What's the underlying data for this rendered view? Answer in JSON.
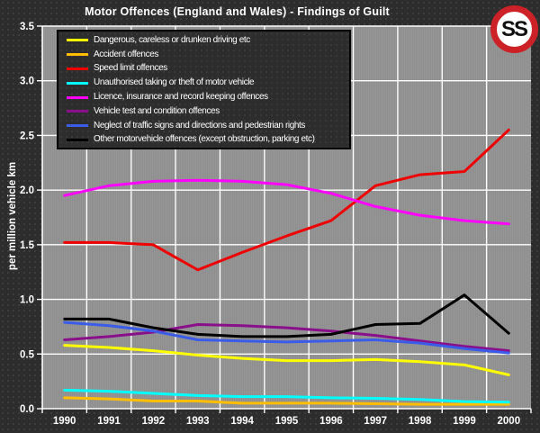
{
  "logo": {
    "text": "SS",
    "ring_color": "#cc2127"
  },
  "colors": {
    "background": "#2d2d2d",
    "background_dot": "#3e3e3e",
    "plot_fill": "#969696",
    "plot_stripe": "#8e8e8e",
    "grid": "#ffffff",
    "axis_text": "#ffffff",
    "legend_border": "#000000"
  },
  "chart_data": {
    "type": "line",
    "title": "Motor Offences (England and Wales) - Findings of Guilt",
    "x": [
      "1990",
      "1991",
      "1992",
      "1993",
      "1994",
      "1995",
      "1996",
      "1997",
      "1998",
      "1999",
      "2000"
    ],
    "xlabel": "",
    "ylabel": "per million vehicle km",
    "ylim": [
      0,
      3.5
    ],
    "yticks": [
      "0.0",
      "0.5",
      "1.0",
      "1.5",
      "2.0",
      "2.5",
      "3.0",
      "3.5"
    ],
    "grid": true,
    "legend_position": "top-left",
    "series": [
      {
        "name": "Dangerous, careless or drunken driving etc",
        "color": "#ffff00",
        "values": [
          0.58,
          0.56,
          0.53,
          0.49,
          0.46,
          0.44,
          0.44,
          0.45,
          0.43,
          0.4,
          0.31
        ]
      },
      {
        "name": "Accident offences",
        "color": "#ffbf00",
        "values": [
          0.1,
          0.09,
          0.07,
          0.07,
          0.05,
          0.05,
          0.05,
          0.045,
          0.04,
          0.04,
          0.04
        ]
      },
      {
        "name": "Speed limit offences",
        "color": "#ee0000",
        "values": [
          1.52,
          1.52,
          1.5,
          1.27,
          1.43,
          1.58,
          1.72,
          2.04,
          2.14,
          2.17,
          2.55
        ]
      },
      {
        "name": "Unauthorised taking or theft of motor vehicle",
        "color": "#00ffff",
        "values": [
          0.17,
          0.16,
          0.14,
          0.12,
          0.11,
          0.11,
          0.1,
          0.095,
          0.085,
          0.065,
          0.06
        ]
      },
      {
        "name": "Licence, insurance and record keeping offences",
        "color": "#ff00ff",
        "values": [
          1.95,
          2.04,
          2.08,
          2.09,
          2.08,
          2.05,
          1.97,
          1.85,
          1.77,
          1.72,
          1.69
        ]
      },
      {
        "name": "Vehicle test and condition offences",
        "color": "#8a0f8a",
        "values": [
          0.63,
          0.66,
          0.7,
          0.77,
          0.76,
          0.74,
          0.71,
          0.67,
          0.62,
          0.57,
          0.53
        ]
      },
      {
        "name": "Neglect of traffic signs and directions and pedestrian rights",
        "color": "#3a5ce8",
        "values": [
          0.79,
          0.76,
          0.71,
          0.63,
          0.62,
          0.61,
          0.62,
          0.63,
          0.6,
          0.55,
          0.51
        ]
      },
      {
        "name": "Other motorvehicle offences (except obstruction, parking etc)",
        "color": "#000000",
        "values": [
          0.82,
          0.82,
          0.74,
          0.68,
          0.66,
          0.66,
          0.68,
          0.77,
          0.78,
          1.04,
          0.69
        ]
      }
    ]
  }
}
